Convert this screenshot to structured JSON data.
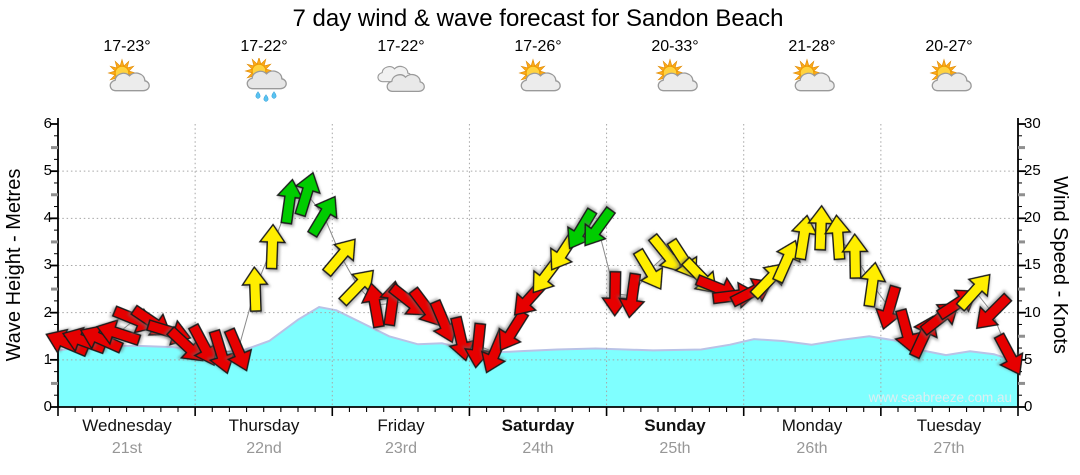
{
  "title": "7 day wind & wave forecast for Sandon Beach",
  "watermark": "www.seabreeze.com.au",
  "days": [
    {
      "name": "Wednesday",
      "date": "21st",
      "temp": "17-23°",
      "icon": "partly-cloudy",
      "bold": false
    },
    {
      "name": "Thursday",
      "date": "22nd",
      "temp": "17-22°",
      "icon": "showers",
      "bold": false
    },
    {
      "name": "Friday",
      "date": "23rd",
      "temp": "17-22°",
      "icon": "cloudy",
      "bold": false
    },
    {
      "name": "Saturday",
      "date": "24th",
      "temp": "17-26°",
      "icon": "partly-cloudy",
      "bold": true
    },
    {
      "name": "Sunday",
      "date": "25th",
      "temp": "20-33°",
      "icon": "partly-cloudy",
      "bold": true
    },
    {
      "name": "Monday",
      "date": "26th",
      "temp": "21-28°",
      "icon": "partly-cloudy",
      "bold": false
    },
    {
      "name": "Tuesday",
      "date": "27th",
      "temp": "20-27°",
      "icon": "partly-cloudy",
      "bold": false
    }
  ],
  "left_axis": {
    "title": "Wave Height - Metres",
    "ticks": [
      "0",
      "1",
      "2",
      "3",
      "4",
      "5",
      "6"
    ]
  },
  "right_axis": {
    "title": "Wind Speed - Knots",
    "ticks": [
      "0",
      "5",
      "10",
      "15",
      "20",
      "25",
      "30"
    ]
  },
  "colors": {
    "wave_fill": "#7FFFFF",
    "wave_outline": "#B9C2E6",
    "arrow_red": "#E60000",
    "arrow_yellow": "#FFEE00",
    "arrow_green": "#00CC00",
    "grid": "#A6A6A6",
    "axis": "#000000",
    "date_gray": "#979797"
  },
  "chart_data": {
    "type": "area+wind-arrows",
    "title": "7 day wind & wave forecast for Sandon Beach",
    "left_axis": {
      "label": "Wave Height - Metres",
      "range": [
        0,
        6
      ]
    },
    "right_axis": {
      "label": "Wind Speed - Knots",
      "range": [
        0,
        30
      ]
    },
    "x_days": [
      "Wednesday 21st",
      "Thursday 22nd",
      "Friday 23rd",
      "Saturday 24th",
      "Sunday 25th",
      "Monday 26th",
      "Tuesday 27th"
    ],
    "slots_per_day": 8,
    "grid": "dotted horizontal each metre (1-5), dotted vertical at day boundaries",
    "wave_height_m": [
      [
        0.0,
        1.2
      ],
      [
        0.03,
        1.28
      ],
      [
        0.08,
        1.3
      ],
      [
        0.12,
        1.27
      ],
      [
        0.155,
        1.17
      ],
      [
        0.19,
        1.18
      ],
      [
        0.22,
        1.4
      ],
      [
        0.25,
        1.85
      ],
      [
        0.272,
        2.12
      ],
      [
        0.29,
        2.05
      ],
      [
        0.315,
        1.8
      ],
      [
        0.345,
        1.5
      ],
      [
        0.375,
        1.33
      ],
      [
        0.4,
        1.35
      ],
      [
        0.425,
        1.22
      ],
      [
        0.45,
        1.15
      ],
      [
        0.48,
        1.18
      ],
      [
        0.52,
        1.22
      ],
      [
        0.56,
        1.24
      ],
      [
        0.62,
        1.2
      ],
      [
        0.67,
        1.22
      ],
      [
        0.7,
        1.32
      ],
      [
        0.725,
        1.44
      ],
      [
        0.755,
        1.4
      ],
      [
        0.785,
        1.32
      ],
      [
        0.815,
        1.42
      ],
      [
        0.845,
        1.5
      ],
      [
        0.875,
        1.4
      ],
      [
        0.9,
        1.2
      ],
      [
        0.925,
        1.1
      ],
      [
        0.95,
        1.18
      ],
      [
        0.975,
        1.12
      ],
      [
        1.0,
        0.95
      ]
    ],
    "wind_arrows_per_day": [
      {
        "day": "Wednesday",
        "knots": [
          6.8,
          7.0,
          7.2,
          7.8,
          9.3,
          9.0,
          8.0,
          6.5
        ],
        "dir_deg": [
          293,
          290,
          294,
          288,
          112,
          124,
          107,
          133
        ],
        "color": [
          "red",
          "red",
          "red",
          "red",
          "red",
          "red",
          "red",
          "red"
        ]
      },
      {
        "day": "Thursday",
        "knots": [
          6.5,
          5.8,
          6.0,
          12.5,
          17.0,
          21.8,
          22.6,
          20.3
        ],
        "dir_deg": [
          152,
          163,
          157,
          358,
          2,
          8,
          17,
          31
        ],
        "color": [
          "red",
          "red",
          "red",
          "yellow",
          "yellow",
          "green",
          "green",
          "green"
        ]
      },
      {
        "day": "Friday",
        "knots": [
          16.0,
          12.8,
          10.8,
          11.0,
          11.2,
          10.5,
          9.0,
          7.2
        ],
        "dir_deg": [
          40,
          44,
          350,
          8,
          128,
          143,
          157,
          167
        ],
        "color": [
          "yellow",
          "yellow",
          "red",
          "red",
          "red",
          "red",
          "red",
          "red"
        ]
      },
      {
        "day": "Saturday",
        "knots": [
          6.5,
          5.8,
          8.0,
          11.5,
          14.0,
          16.5,
          18.8,
          19.0
        ],
        "dir_deg": [
          186,
          203,
          212,
          222,
          217,
          213,
          211,
          216
        ],
        "color": [
          "red",
          "red",
          "red",
          "red",
          "yellow",
          "yellow",
          "green",
          "green"
        ]
      },
      {
        "day": "Sunday",
        "knots": [
          12.0,
          11.8,
          14.5,
          16.2,
          15.6,
          13.8,
          12.6,
          11.8
        ],
        "dir_deg": [
          181,
          188,
          149,
          141,
          147,
          136,
          112,
          83
        ],
        "color": [
          "red",
          "red",
          "yellow",
          "yellow",
          "yellow",
          "yellow",
          "red",
          "red"
        ]
      },
      {
        "day": "Monday",
        "knots": [
          12.2,
          13.5,
          15.5,
          18.0,
          19.0,
          18.0,
          16.0,
          13.0
        ],
        "dir_deg": [
          63,
          44,
          24,
          9,
          2,
          356,
          359,
          8
        ],
        "color": [
          "red",
          "yellow",
          "yellow",
          "yellow",
          "yellow",
          "yellow",
          "yellow",
          "yellow"
        ]
      },
      {
        "day": "Tuesday",
        "knots": [
          10.5,
          8.0,
          7.5,
          9.5,
          11.0,
          12.3,
          10.0,
          5.5
        ],
        "dir_deg": [
          196,
          165,
          25,
          52,
          57,
          42,
          225,
          152
        ],
        "color": [
          "red",
          "red",
          "red",
          "red",
          "red",
          "yellow",
          "red",
          "red"
        ]
      }
    ]
  }
}
